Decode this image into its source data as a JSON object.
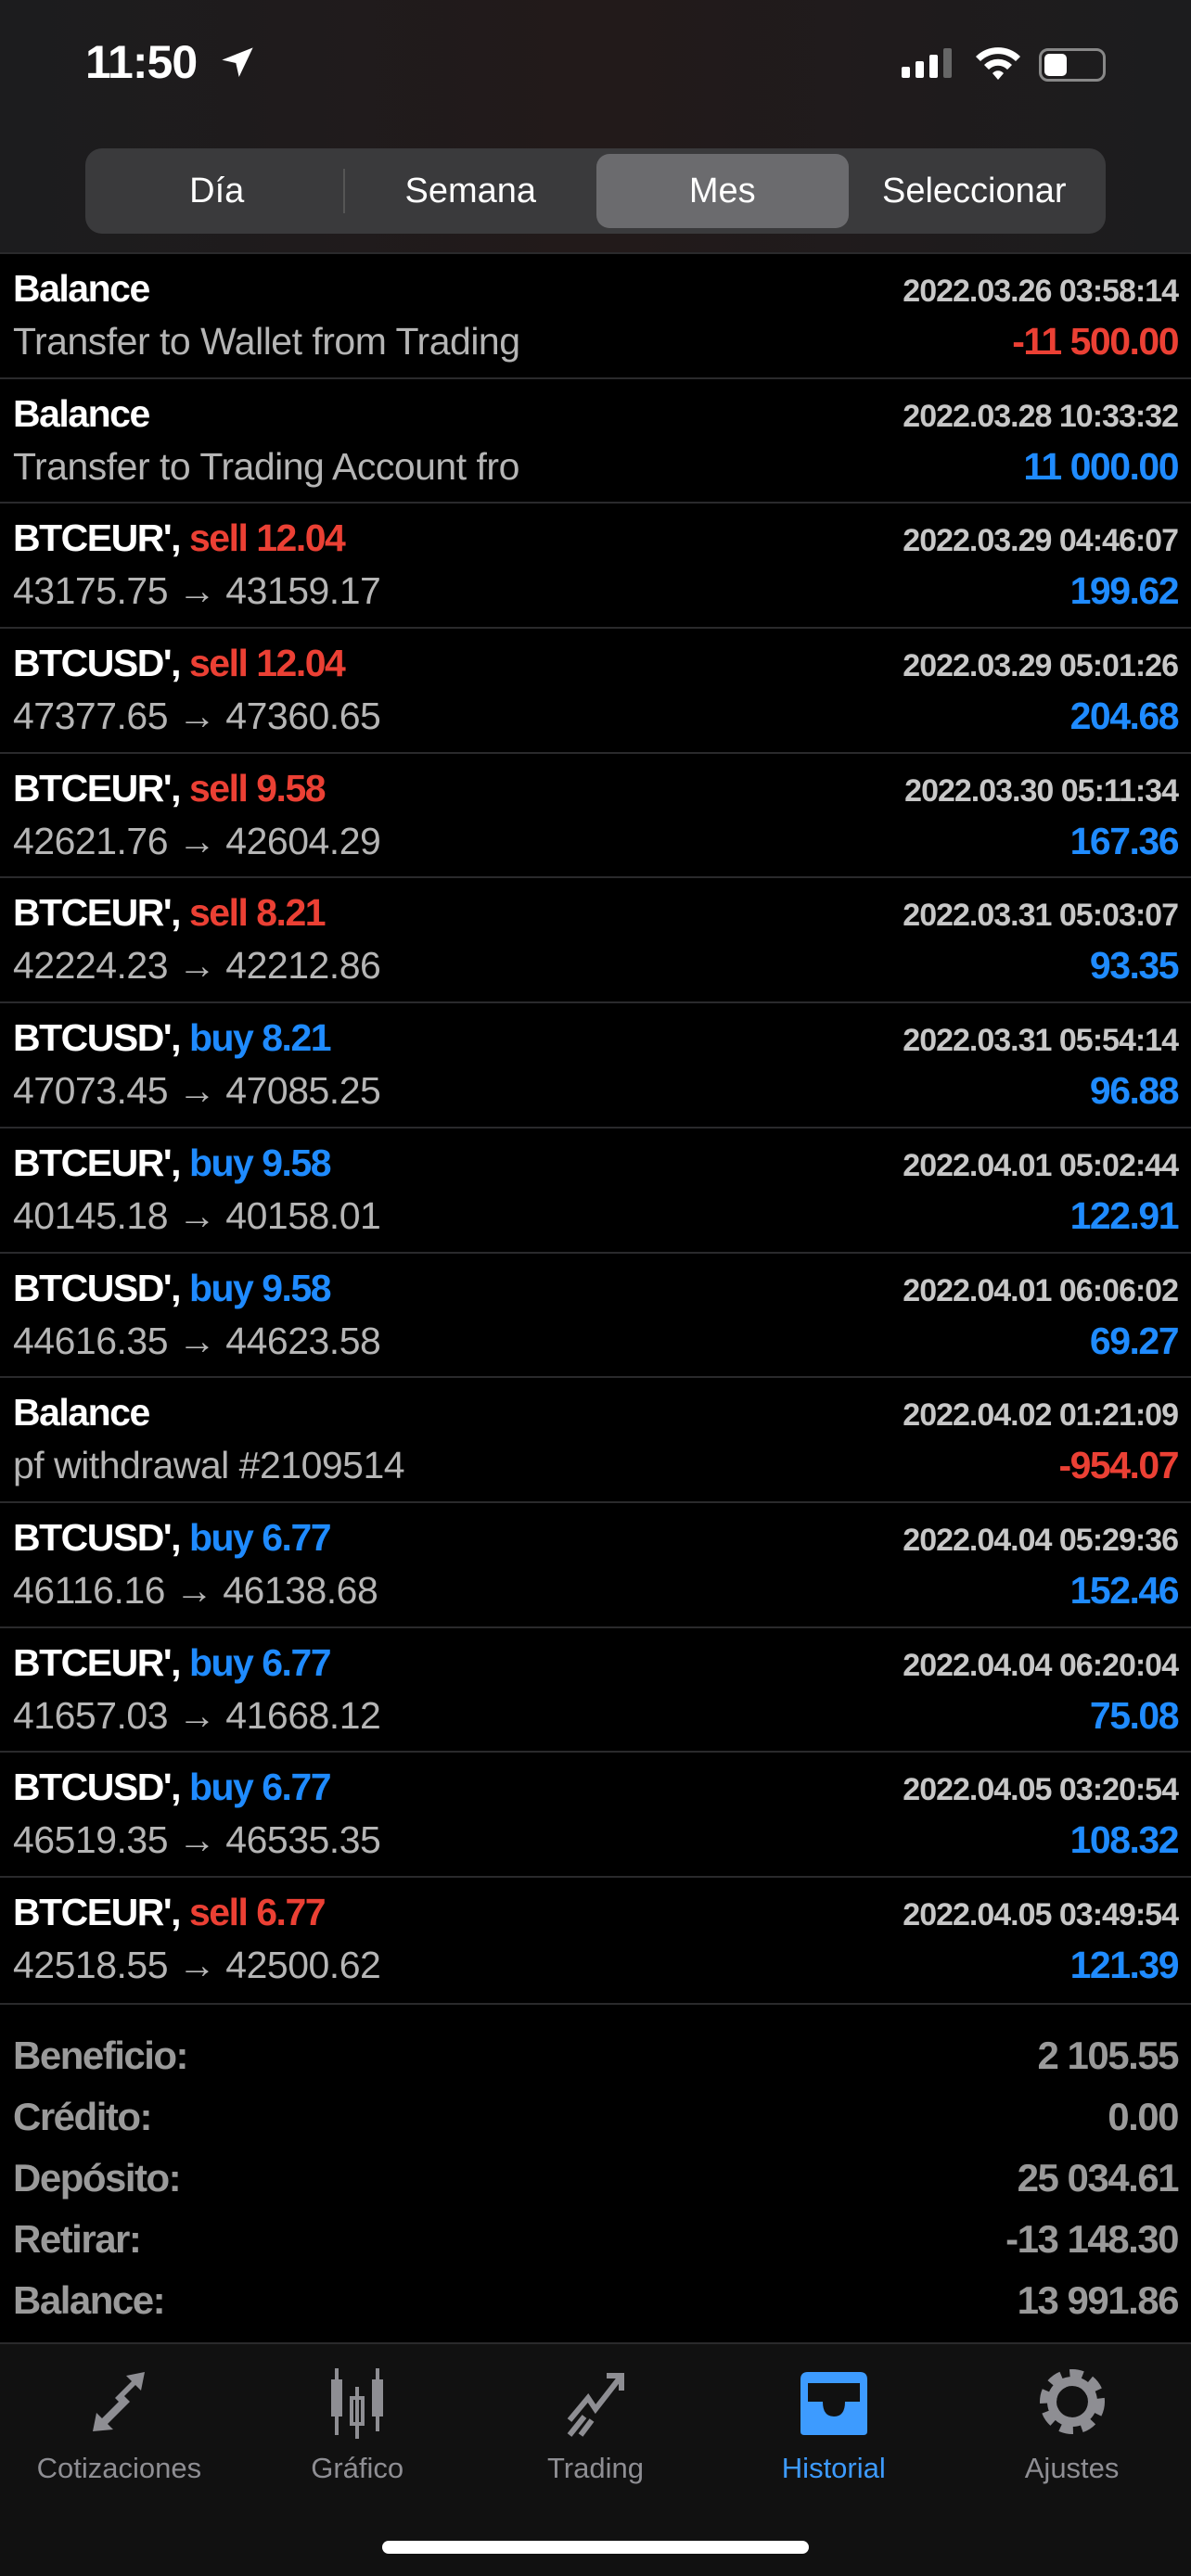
{
  "status_bar": {
    "time": "11:50"
  },
  "segments": {
    "items": [
      "Día",
      "Semana",
      "Mes",
      "Seleccionar"
    ],
    "active": "Mes"
  },
  "colors": {
    "sell": "#eb4034",
    "buy": "#1f8bff",
    "profit": "#1f8bff",
    "loss": "#eb4034",
    "active_tab": "#3d9bff"
  },
  "deals": [
    {
      "symbol": "Balance",
      "action": "",
      "time": "2022.03.26 03:58:14",
      "desc": "Transfer to Wallet from Trading",
      "amount": "-11 500.00",
      "amount_color": "red"
    },
    {
      "symbol": "Balance",
      "action": "",
      "time": "2022.03.28 10:33:32",
      "desc": "Transfer to Trading Account fro",
      "amount": "11 000.00",
      "amount_color": "blue"
    },
    {
      "symbol": "BTCEUR',",
      "action": "sell 12.04",
      "action_color": "red",
      "time": "2022.03.29 04:46:07",
      "desc": "43175.75 → 43159.17",
      "amount": "199.62",
      "amount_color": "blue"
    },
    {
      "symbol": "BTCUSD',",
      "action": "sell 12.04",
      "action_color": "red",
      "time": "2022.03.29 05:01:26",
      "desc": "47377.65 → 47360.65",
      "amount": "204.68",
      "amount_color": "blue"
    },
    {
      "symbol": "BTCEUR',",
      "action": "sell 9.58",
      "action_color": "red",
      "time": "2022.03.30 05:11:34",
      "desc": "42621.76 → 42604.29",
      "amount": "167.36",
      "amount_color": "blue"
    },
    {
      "symbol": "BTCEUR',",
      "action": "sell 8.21",
      "action_color": "red",
      "time": "2022.03.31 05:03:07",
      "desc": "42224.23 → 42212.86",
      "amount": "93.35",
      "amount_color": "blue"
    },
    {
      "symbol": "BTCUSD',",
      "action": "buy 8.21",
      "action_color": "blue",
      "time": "2022.03.31 05:54:14",
      "desc": "47073.45 → 47085.25",
      "amount": "96.88",
      "amount_color": "blue"
    },
    {
      "symbol": "BTCEUR',",
      "action": "buy 9.58",
      "action_color": "blue",
      "time": "2022.04.01 05:02:44",
      "desc": "40145.18 → 40158.01",
      "amount": "122.91",
      "amount_color": "blue"
    },
    {
      "symbol": "BTCUSD',",
      "action": "buy 9.58",
      "action_color": "blue",
      "time": "2022.04.01 06:06:02",
      "desc": "44616.35 → 44623.58",
      "amount": "69.27",
      "amount_color": "blue"
    },
    {
      "symbol": "Balance",
      "action": "",
      "time": "2022.04.02 01:21:09",
      "desc": "pf withdrawal #2109514",
      "amount": "-954.07",
      "amount_color": "red"
    },
    {
      "symbol": "BTCUSD',",
      "action": "buy 6.77",
      "action_color": "blue",
      "time": "2022.04.04 05:29:36",
      "desc": "46116.16 → 46138.68",
      "amount": "152.46",
      "amount_color": "blue"
    },
    {
      "symbol": "BTCEUR',",
      "action": "buy 6.77",
      "action_color": "blue",
      "time": "2022.04.04 06:20:04",
      "desc": "41657.03 → 41668.12",
      "amount": "75.08",
      "amount_color": "blue"
    },
    {
      "symbol": "BTCUSD',",
      "action": "buy 6.77",
      "action_color": "blue",
      "time": "2022.04.05 03:20:54",
      "desc": "46519.35 → 46535.35",
      "amount": "108.32",
      "amount_color": "blue"
    },
    {
      "symbol": "BTCEUR',",
      "action": "sell 6.77",
      "action_color": "red",
      "time": "2022.04.05 03:49:54",
      "desc": "42518.55 → 42500.62",
      "amount": "121.39",
      "amount_color": "blue"
    }
  ],
  "summary": [
    {
      "label": "Beneficio:",
      "value": "2 105.55"
    },
    {
      "label": "Crédito:",
      "value": "0.00"
    },
    {
      "label": "Depósito:",
      "value": "25 034.61"
    },
    {
      "label": "Retirar:",
      "value": "-13 148.30"
    },
    {
      "label": "Balance:",
      "value": "13 991.86"
    }
  ],
  "tabs": [
    {
      "label": "Cotizaciones",
      "icon": "quotes-arrows-icon"
    },
    {
      "label": "Gráfico",
      "icon": "candlestick-icon"
    },
    {
      "label": "Trading",
      "icon": "trading-trend-icon"
    },
    {
      "label": "Historial",
      "icon": "inbox-tray-icon",
      "active": true
    },
    {
      "label": "Ajustes",
      "icon": "gear-icon"
    }
  ]
}
